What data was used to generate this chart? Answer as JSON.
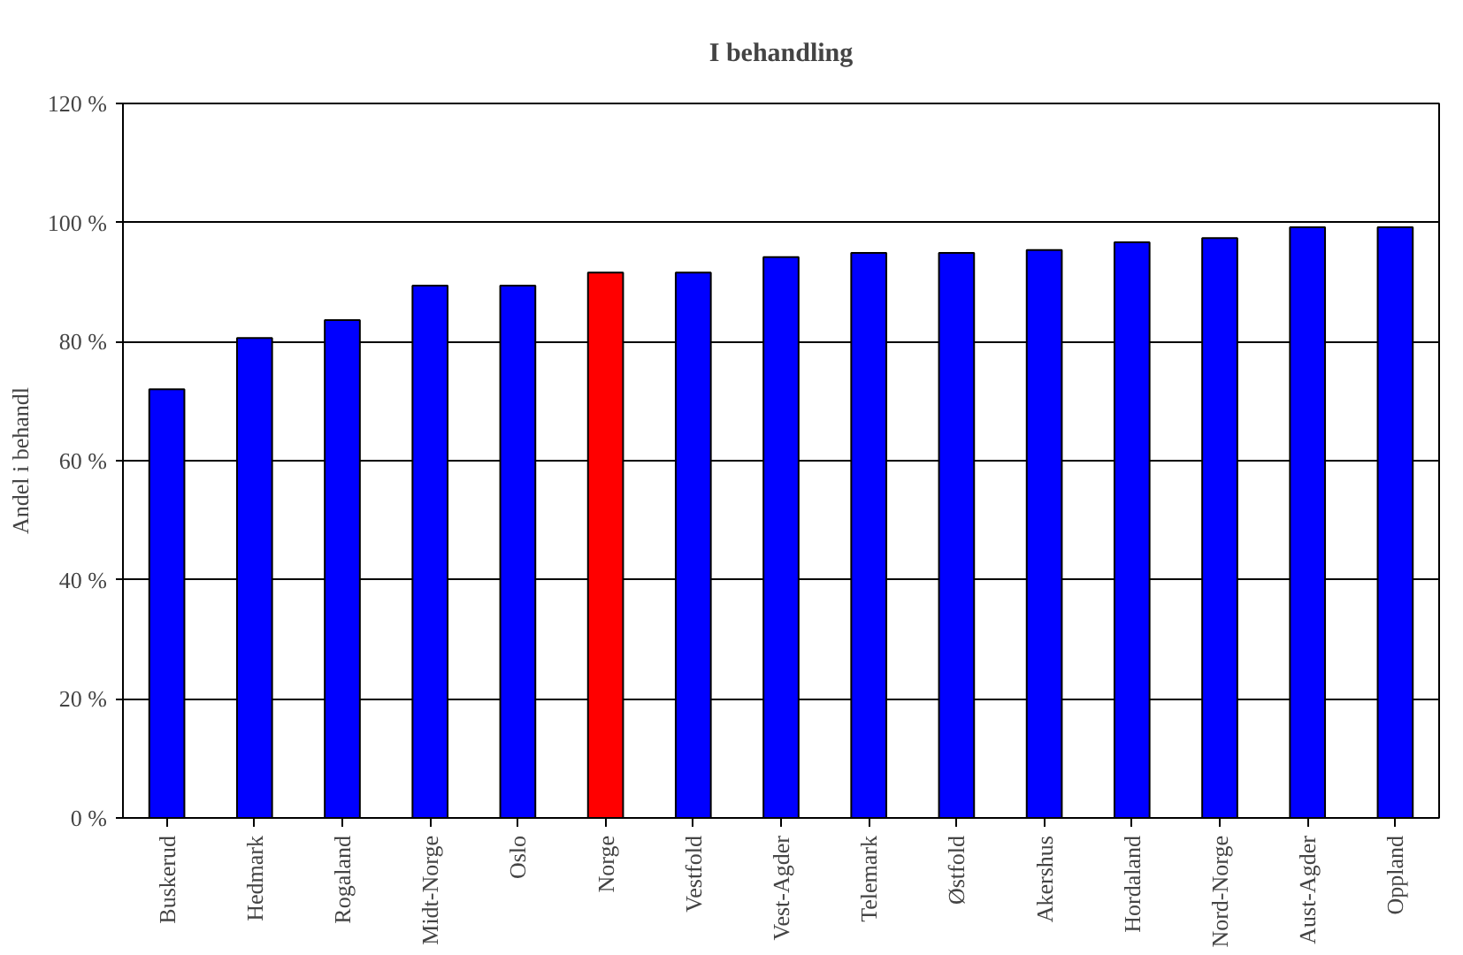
{
  "chart_data": {
    "type": "bar",
    "title": "I behandling",
    "ylabel": "Andel i behandl",
    "categories": [
      "Buskerud",
      "Hedmark",
      "Rogaland",
      "Midt-Norge",
      "Oslo",
      "Norge",
      "Vestfold",
      "Vest-Agder",
      "Telemark",
      "Østfold",
      "Akershus",
      "Hordaland",
      "Nord-Norge",
      "Aust-Agder",
      "Oppland"
    ],
    "values": [
      72,
      80.6,
      83.6,
      89.4,
      89.4,
      91.6,
      91.6,
      94.2,
      94.9,
      94.9,
      95.4,
      96.7,
      97.4,
      99.2,
      99.2
    ],
    "colors": [
      "#0000ff",
      "#0000ff",
      "#0000ff",
      "#0000ff",
      "#0000ff",
      "#ff0000",
      "#0000ff",
      "#0000ff",
      "#0000ff",
      "#0000ff",
      "#0000ff",
      "#0000ff",
      "#0000ff",
      "#0000ff",
      "#0000ff"
    ],
    "ylim": [
      0,
      120
    ],
    "yticks": [
      {
        "value": 0,
        "label": "0 %"
      },
      {
        "value": 20,
        "label": "20 %"
      },
      {
        "value": 40,
        "label": "40 %"
      },
      {
        "value": 60,
        "label": "60 %"
      },
      {
        "value": 80,
        "label": "80 %"
      },
      {
        "value": 100,
        "label": "100 %"
      },
      {
        "value": 120,
        "label": "120 %"
      }
    ],
    "grid": "y"
  }
}
